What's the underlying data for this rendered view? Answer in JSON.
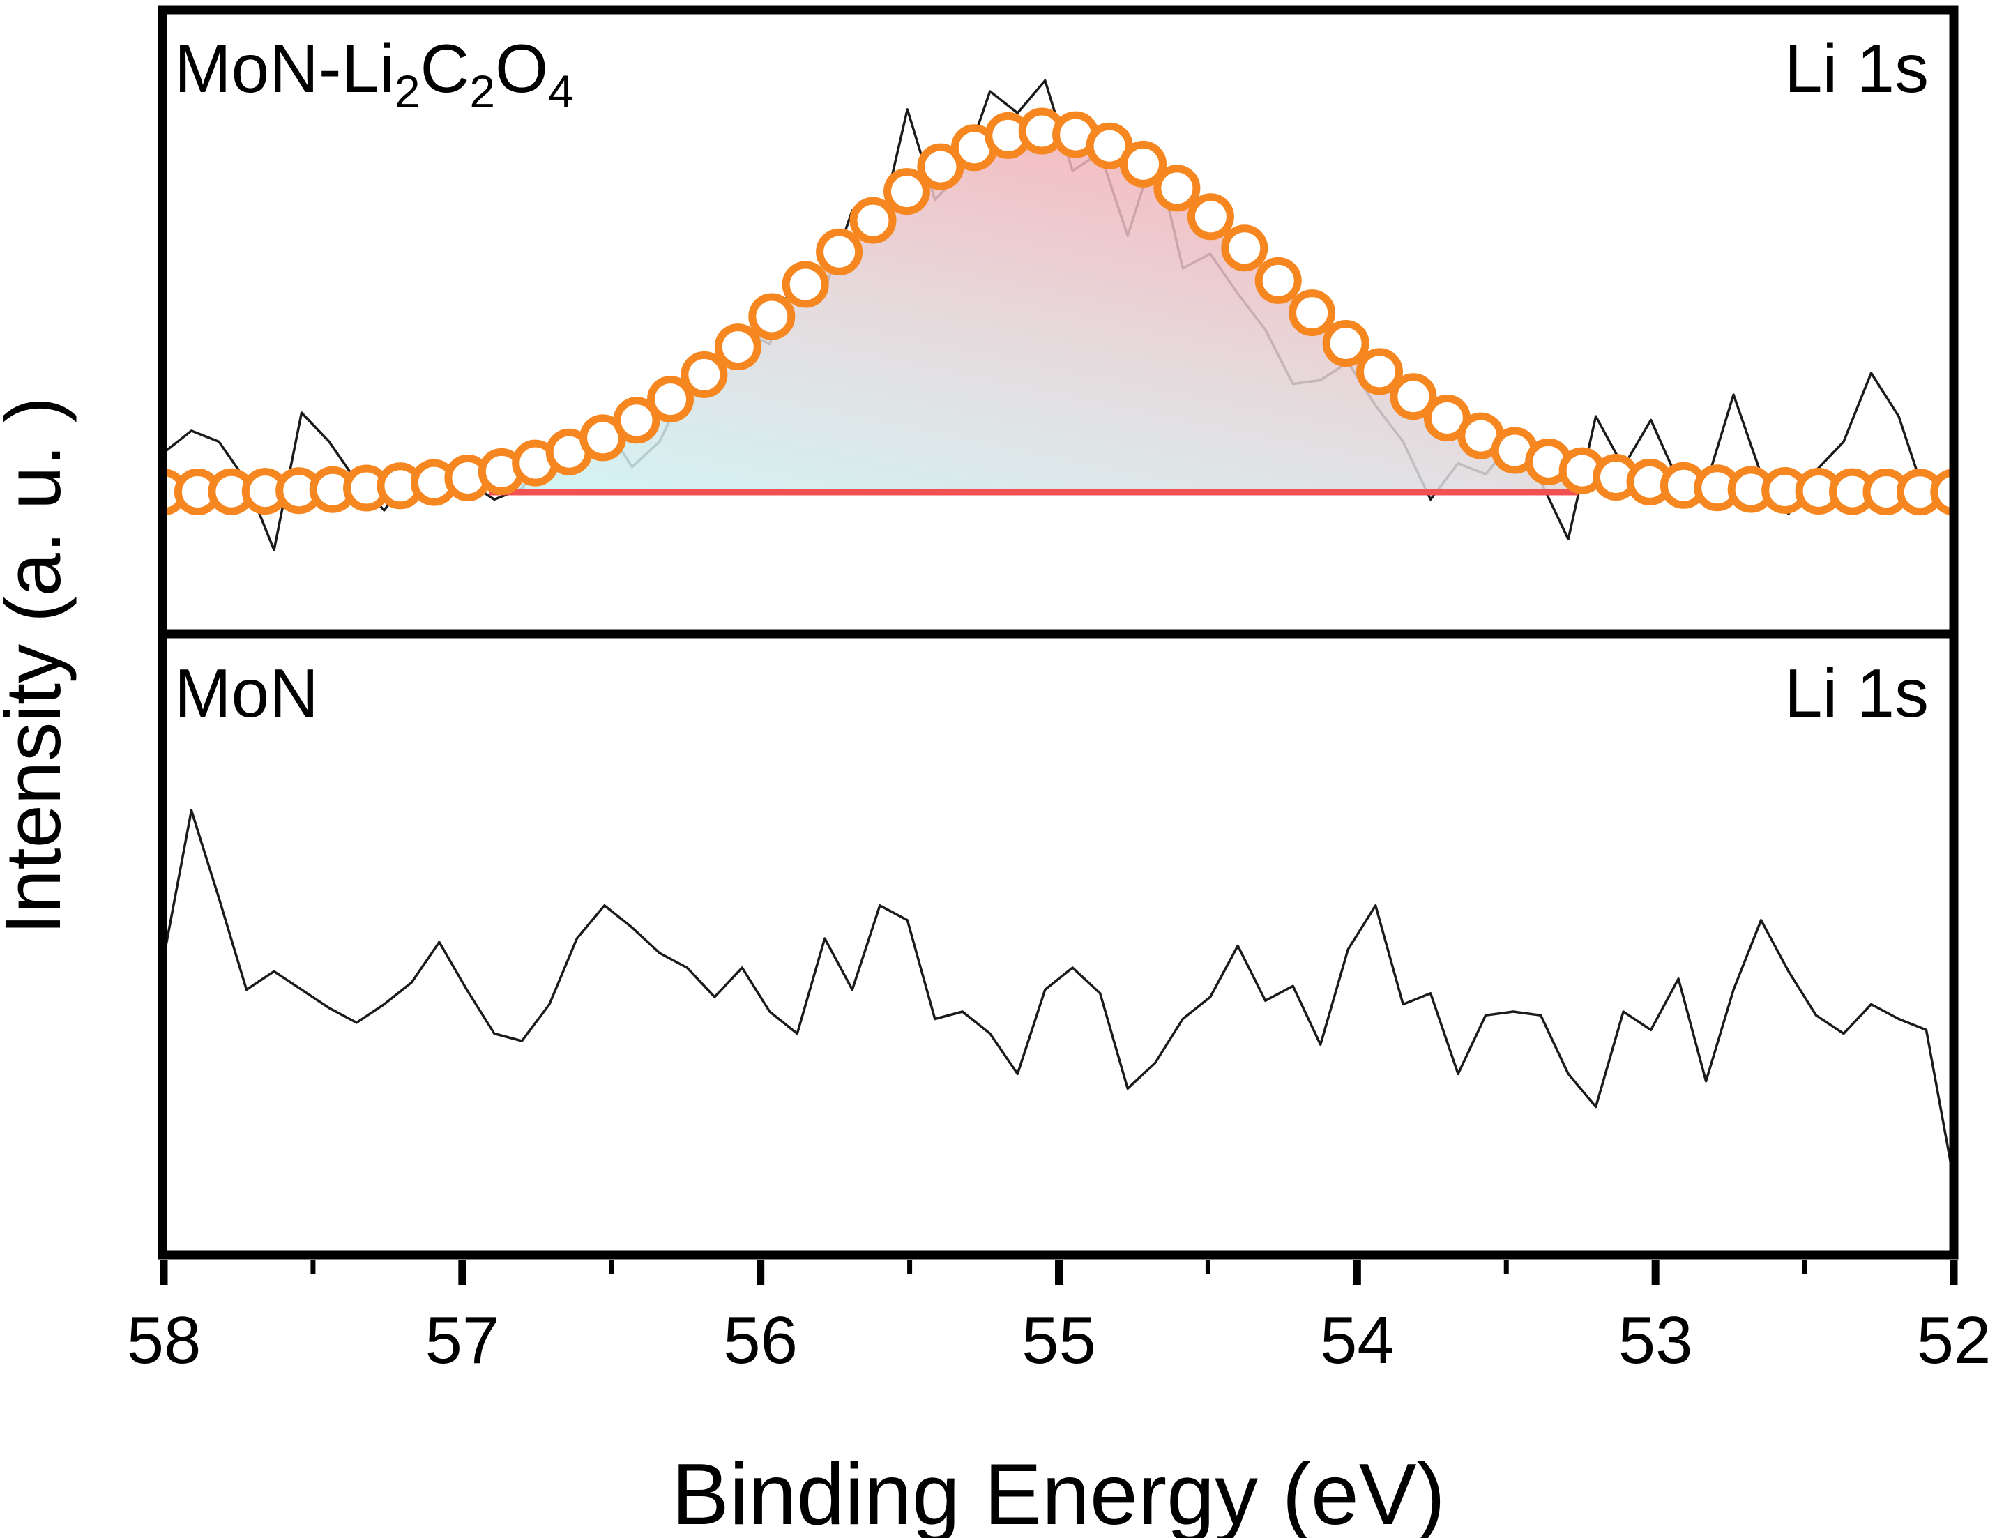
{
  "figure": {
    "background": "#ffffff",
    "frame_color": "#000000"
  },
  "x_axis": {
    "label": "Binding Energy (eV)",
    "ticks": [
      "58",
      "57",
      "56",
      "55",
      "54",
      "53",
      "52"
    ],
    "range": [
      58,
      52
    ],
    "minor_tick_step": 0.5,
    "direction": "decreasing"
  },
  "y_axis": {
    "label": "Intensity (a. u. )",
    "ticks": []
  },
  "panels": [
    {
      "id": "top",
      "material_label_text": "MoN-Li2C2O4",
      "material_label_parts": [
        {
          "t": "MoN-Li",
          "sub": false
        },
        {
          "t": "2",
          "sub": true
        },
        {
          "t": "C",
          "sub": false
        },
        {
          "t": "2",
          "sub": true
        },
        {
          "t": "O",
          "sub": false
        },
        {
          "t": "4",
          "sub": true
        }
      ],
      "region_label": "Li 1s"
    },
    {
      "id": "bottom",
      "material_label_text": "MoN",
      "material_label_parts": [
        {
          "t": "MoN",
          "sub": false
        }
      ],
      "region_label": "Li 1s"
    }
  ],
  "chart_data": [
    {
      "type": "line",
      "panel": "top",
      "title": "MoN-Li2C2O4 Li 1s XPS spectrum with fitted peak",
      "xlabel": "Binding Energy (eV)",
      "ylabel": "Intensity (a. u. )",
      "xlim": [
        58,
        52
      ],
      "grid": false,
      "legend": "none",
      "series": [
        {
          "name": "raw-spectrum",
          "style": "thin-black-line",
          "x_start": 58,
          "x_end": 52,
          "values": [
            0.11,
            0.17,
            0.14,
            0.03,
            -0.16,
            0.22,
            0.14,
            0.03,
            -0.05,
            0.05,
            -0.02,
            0.03,
            -0.02,
            0.01,
            0.12,
            0.08,
            0.19,
            0.07,
            0.14,
            0.3,
            0.33,
            0.45,
            0.41,
            0.62,
            0.56,
            0.78,
            0.73,
            1.06,
            0.81,
            0.89,
            1.11,
            1.05,
            1.14,
            0.89,
            0.94,
            0.71,
            0.95,
            0.62,
            0.66,
            0.55,
            0.45,
            0.3,
            0.31,
            0.36,
            0.24,
            0.14,
            -0.02,
            0.08,
            0.05,
            0.14,
            0.03,
            -0.13,
            0.21,
            0.07,
            0.2,
            0.03,
            0.02,
            0.27,
            0.05,
            -0.06,
            0.06,
            0.14,
            0.33,
            0.21,
            -0.02,
            0.0
          ]
        },
        {
          "name": "fitted-peak",
          "style": "open-circle-markers",
          "model": "gaussian",
          "center_eV": 55.05,
          "sigma_eV": 0.76,
          "amplitude": 1.0,
          "baseline": 0.0,
          "marker_step_eV": 0.1132
        },
        {
          "name": "background-baseline",
          "style": "red-line",
          "span_eV": [
            56.91,
            53.26
          ],
          "level": 0.0
        }
      ]
    },
    {
      "type": "line",
      "panel": "bottom",
      "title": "MoN Li 1s XPS spectrum (no peak)",
      "xlabel": "Binding Energy (eV)",
      "ylabel": "Intensity (a. u. )",
      "xlim": [
        58,
        52
      ],
      "grid": false,
      "legend": "none",
      "series": [
        {
          "name": "raw-spectrum",
          "style": "thin-black-line",
          "x_start": 58,
          "x_end": 52,
          "values": [
            0.11,
            0.51,
            0.27,
            0.02,
            0.07,
            0.02,
            -0.03,
            -0.07,
            -0.02,
            0.04,
            0.15,
            0.02,
            -0.1,
            -0.12,
            -0.02,
            0.16,
            0.25,
            0.19,
            0.12,
            0.08,
            0.0,
            0.08,
            -0.04,
            -0.1,
            0.16,
            0.02,
            0.25,
            0.21,
            -0.06,
            -0.04,
            -0.1,
            -0.21,
            0.02,
            0.08,
            0.01,
            -0.25,
            -0.18,
            -0.06,
            0.0,
            0.14,
            -0.01,
            0.03,
            -0.13,
            0.13,
            0.25,
            -0.02,
            0.01,
            -0.21,
            -0.05,
            -0.04,
            -0.05,
            -0.21,
            -0.3,
            -0.04,
            -0.09,
            0.05,
            -0.23,
            0.02,
            0.21,
            0.07,
            -0.05,
            -0.1,
            -0.02,
            -0.06,
            -0.09,
            -0.5
          ]
        }
      ]
    }
  ],
  "colors": {
    "marker_stroke": "#F6861F",
    "marker_fill": "#ffffff",
    "baseline_red": "#F15153",
    "raw_line": "#1b1b1b",
    "fill_gradient_start": "#cbf3f4",
    "fill_gradient_mid": "#e0d6d9",
    "fill_gradient_end": "#f4aeb4",
    "frame": "#000000"
  }
}
